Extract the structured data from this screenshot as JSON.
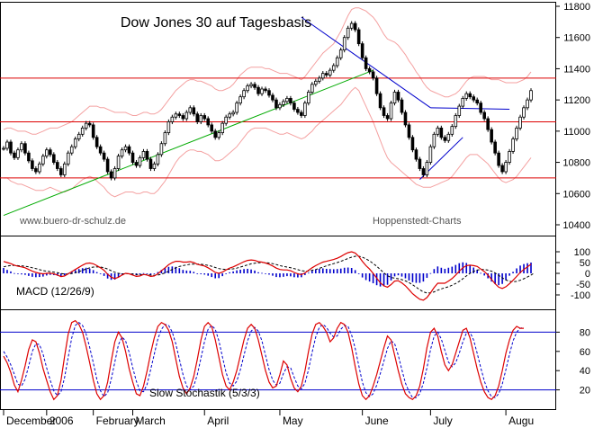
{
  "chart_data": [
    {
      "type": "candlestick",
      "title": "Dow Jones 30 auf Tagesbasis",
      "watermark_left": "www.buero-dr-schulz.de",
      "watermark_right": "Hoppenstedt-Charts",
      "ylim": [
        10400,
        11800
      ],
      "yticks": [
        10400,
        10600,
        10800,
        11000,
        11200,
        11400,
        11600,
        11800
      ],
      "colors": {
        "price": "#000000",
        "bands": "#f4a0a0",
        "hlines": "#dd0000",
        "uptrend": "#00aa00",
        "downtrend": "#0000cc"
      },
      "close": [
        10890,
        10930,
        10860,
        10830,
        10880,
        10920,
        10860,
        10810,
        10760,
        10740,
        10790,
        10840,
        10880,
        10850,
        10800,
        10760,
        10720,
        10790,
        10860,
        10900,
        10950,
        10980,
        11020,
        11050,
        11040,
        10960,
        10900,
        10860,
        10820,
        10740,
        10700,
        10760,
        10840,
        10880,
        10900,
        10860,
        10800,
        10780,
        10830,
        10870,
        10820,
        10760,
        10790,
        10850,
        10920,
        10990,
        11060,
        11090,
        11110,
        11100,
        11080,
        11120,
        11150,
        11110,
        11060,
        11100,
        11080,
        11040,
        11000,
        10960,
        10990,
        11050,
        11090,
        11110,
        11120,
        11180,
        11220,
        11260,
        11290,
        11300,
        11280,
        11240,
        11270,
        11260,
        11230,
        11200,
        11150,
        11170,
        11190,
        11210,
        11180,
        11140,
        11120,
        11100,
        11180,
        11250,
        11300,
        11320,
        11340,
        11370,
        11360,
        11390,
        11420,
        11470,
        11520,
        11600,
        11660,
        11690,
        11650,
        11560,
        11470,
        11400,
        11380,
        11340,
        11240,
        11150,
        11100,
        11080,
        11180,
        11250,
        11200,
        11120,
        11040,
        10960,
        10880,
        10820,
        10760,
        10720,
        10800,
        10900,
        10980,
        11020,
        10960,
        10940,
        10980,
        11030,
        11100,
        11160,
        11210,
        11240,
        11220,
        11200,
        11180,
        11120,
        11080,
        11010,
        10930,
        10860,
        10780,
        10740,
        10800,
        10870,
        10950,
        11020,
        11090,
        11150,
        11200,
        11260
      ],
      "band_upper": [
        11010,
        11020,
        11020,
        11010,
        11000,
        11000,
        11000,
        10990,
        10980,
        10980,
        10990,
        11000,
        11010,
        11020,
        11020,
        11020,
        11030,
        11040,
        11050,
        11060,
        11080,
        11100,
        11120,
        11140,
        11160,
        11160,
        11160,
        11150,
        11150,
        11140,
        11130,
        11120,
        11120,
        11120,
        11120,
        11110,
        11100,
        11100,
        11110,
        11120,
        11120,
        11110,
        11110,
        11120,
        11140,
        11170,
        11200,
        11230,
        11260,
        11280,
        11300,
        11320,
        11330,
        11330,
        11320,
        11320,
        11310,
        11300,
        11290,
        11270,
        11260,
        11260,
        11270,
        11280,
        11300,
        11330,
        11360,
        11380,
        11400,
        11410,
        11410,
        11410,
        11410,
        11400,
        11400,
        11390,
        11380,
        11370,
        11370,
        11370,
        11360,
        11350,
        11340,
        11330,
        11350,
        11380,
        11410,
        11440,
        11470,
        11500,
        11520,
        11540,
        11560,
        11600,
        11640,
        11690,
        11740,
        11780,
        11790,
        11790,
        11780,
        11770,
        11750,
        11730,
        11700,
        11660,
        11620,
        11590,
        11580,
        11570,
        11550,
        11520,
        11490,
        11450,
        11420,
        11380,
        11350,
        11310,
        11280,
        11260,
        11250,
        11240,
        11230,
        11220,
        11220,
        11230,
        11240,
        11260,
        11290,
        11320,
        11340,
        11350,
        11350,
        11350,
        11350,
        11340,
        11330,
        11330,
        11330,
        11320,
        11310,
        11310,
        11310,
        11310,
        11320,
        11330,
        11350,
        11380
      ],
      "band_lower": [
        10700,
        10700,
        10680,
        10670,
        10660,
        10660,
        10650,
        10640,
        10630,
        10620,
        10620,
        10620,
        10630,
        10640,
        10630,
        10620,
        10610,
        10610,
        10620,
        10630,
        10650,
        10670,
        10690,
        10700,
        10710,
        10700,
        10680,
        10660,
        10640,
        10610,
        10590,
        10580,
        10590,
        10600,
        10610,
        10610,
        10610,
        10600,
        10600,
        10610,
        10610,
        10600,
        10600,
        10620,
        10650,
        10680,
        10720,
        10760,
        10800,
        10830,
        10850,
        10870,
        10880,
        10880,
        10870,
        10870,
        10860,
        10850,
        10830,
        10810,
        10810,
        10820,
        10840,
        10860,
        10880,
        10900,
        10930,
        10960,
        10990,
        11010,
        11020,
        11020,
        11020,
        11020,
        11010,
        11000,
        10990,
        10980,
        10980,
        10990,
        10980,
        10970,
        10960,
        10950,
        10960,
        10980,
        11000,
        11030,
        11050,
        11070,
        11090,
        11110,
        11130,
        11150,
        11170,
        11200,
        11230,
        11260,
        11280,
        11260,
        11210,
        11160,
        11110,
        11060,
        11000,
        10940,
        10880,
        10830,
        10800,
        10780,
        10760,
        10740,
        10720,
        10700,
        10680,
        10660,
        10650,
        10640,
        10640,
        10640,
        10650,
        10660,
        10670,
        10680,
        10690,
        10710,
        10740,
        10770,
        10800,
        10830,
        10850,
        10850,
        10850,
        10830,
        10810,
        10790,
        10760,
        10730,
        10700,
        10680,
        10670,
        10680,
        10690,
        10710,
        10740,
        10770,
        10800,
        10830
      ],
      "horizontal_lines": [
        10700,
        11060,
        11340
      ],
      "uptrend_line": {
        "from": [
          0,
          10460
        ],
        "to": [
          103,
          11390
        ]
      },
      "downtrend_line": {
        "from": [
          83,
          11730
        ],
        "to": [
          119,
          11150
        ]
      },
      "downtrend_line2": {
        "from": [
          119,
          11150
        ],
        "to": [
          141,
          11140
        ]
      },
      "rising_line": {
        "from": [
          116,
          10690
        ],
        "to": [
          128,
          10960
        ]
      }
    },
    {
      "type": "line",
      "label": "MACD (12/26/9)",
      "ylim": [
        -150,
        150
      ],
      "yticks": [
        100,
        50,
        0,
        -50,
        -100
      ],
      "colors": {
        "macd": "#dd0000",
        "signal": "#000000",
        "histogram": "#0000cc"
      },
      "macd": [
        55,
        50,
        45,
        38,
        33,
        30,
        26,
        18,
        10,
        4,
        0,
        -2,
        0,
        1,
        -2,
        -8,
        -15,
        -12,
        -2,
        8,
        18,
        28,
        38,
        46,
        48,
        44,
        36,
        26,
        14,
        -4,
        -18,
        -24,
        -18,
        -8,
        0,
        -2,
        -8,
        -14,
        -12,
        -5,
        -8,
        -14,
        -12,
        -2,
        12,
        26,
        40,
        50,
        56,
        56,
        52,
        52,
        54,
        50,
        42,
        38,
        34,
        26,
        16,
        4,
        0,
        6,
        16,
        24,
        30,
        38,
        46,
        54,
        60,
        62,
        60,
        54,
        52,
        48,
        42,
        34,
        24,
        18,
        16,
        16,
        12,
        4,
        -2,
        -6,
        2,
        14,
        26,
        36,
        44,
        52,
        56,
        60,
        64,
        70,
        78,
        88,
        96,
        100,
        94,
        78,
        56,
        36,
        20,
        0,
        -22,
        -44,
        -58,
        -64,
        -52,
        -36,
        -34,
        -44,
        -58,
        -76,
        -94,
        -108,
        -120,
        -124,
        -112,
        -90,
        -66,
        -46,
        -46,
        -46,
        -36,
        -24,
        -8,
        10,
        26,
        36,
        38,
        36,
        32,
        20,
        8,
        -8,
        -28,
        -48,
        -64,
        -70,
        -62,
        -48,
        -32,
        -14,
        4,
        18,
        30,
        42
      ],
      "signal": [
        30,
        34,
        36,
        37,
        36,
        35,
        33,
        30,
        26,
        22,
        17,
        13,
        10,
        8,
        6,
        3,
        -1,
        -3,
        -3,
        -1,
        3,
        8,
        14,
        20,
        26,
        29,
        30,
        29,
        26,
        20,
        12,
        5,
        0,
        -2,
        -2,
        -2,
        -3,
        -5,
        -6,
        -6,
        -6,
        -8,
        -9,
        -8,
        -4,
        2,
        10,
        18,
        26,
        32,
        36,
        39,
        42,
        43,
        43,
        42,
        40,
        37,
        33,
        27,
        22,
        19,
        18,
        19,
        21,
        24,
        29,
        34,
        39,
        44,
        47,
        49,
        50,
        50,
        48,
        45,
        41,
        36,
        32,
        29,
        26,
        22,
        17,
        12,
        10,
        11,
        14,
        18,
        23,
        29,
        35,
        40,
        45,
        50,
        56,
        62,
        69,
        75,
        79,
        79,
        75,
        67,
        58,
        46,
        33,
        17,
        2,
        -11,
        -19,
        -22,
        -25,
        -29,
        -35,
        -43,
        -53,
        -64,
        -76,
        -86,
        -91,
        -91,
        -86,
        -78,
        -72,
        -67,
        -62,
        -55,
        -47,
        -37,
        -25,
        -12,
        0,
        9,
        15,
        18,
        18,
        15,
        10,
        2,
        -9,
        -21,
        -31,
        -37,
        -39,
        -37,
        -32,
        -25,
        -17,
        -8,
        2
      ]
    },
    {
      "type": "line",
      "label": "Slow Stochastik (5/3/3)",
      "ylim": [
        0,
        100
      ],
      "yticks": [
        80,
        60,
        40,
        20
      ],
      "reference_lines": [
        20,
        80
      ],
      "colors": {
        "k": "#dd0000",
        "d": "#0000cc",
        "reference": "#0000cc"
      },
      "k": [
        55,
        48,
        38,
        25,
        18,
        30,
        45,
        62,
        72,
        70,
        58,
        42,
        30,
        18,
        10,
        14,
        30,
        55,
        78,
        90,
        92,
        88,
        80,
        65,
        48,
        30,
        16,
        10,
        14,
        28,
        50,
        70,
        80,
        74,
        60,
        42,
        28,
        16,
        14,
        24,
        40,
        58,
        74,
        86,
        90,
        88,
        82,
        70,
        52,
        34,
        22,
        16,
        22,
        34,
        52,
        72,
        86,
        90,
        86,
        72,
        54,
        36,
        24,
        20,
        28,
        40,
        56,
        72,
        84,
        88,
        84,
        72,
        56,
        40,
        28,
        22,
        24,
        36,
        50,
        46,
        32,
        22,
        18,
        24,
        40,
        60,
        78,
        88,
        90,
        86,
        80,
        70,
        74,
        84,
        90,
        88,
        80,
        64,
        44,
        26,
        14,
        10,
        14,
        24,
        36,
        50,
        64,
        76,
        72,
        56,
        40,
        26,
        16,
        12,
        10,
        14,
        24,
        42,
        64,
        80,
        84,
        76,
        60,
        46,
        40,
        46,
        58,
        70,
        82,
        84,
        74,
        58,
        42,
        28,
        18,
        12,
        10,
        14,
        24,
        40,
        58,
        72,
        82,
        86,
        84,
        84
      ],
      "d": [
        60,
        54,
        46,
        36,
        26,
        24,
        31,
        45,
        60,
        68,
        67,
        57,
        43,
        30,
        19,
        14,
        18,
        33,
        54,
        74,
        87,
        90,
        87,
        78,
        64,
        48,
        31,
        19,
        13,
        17,
        31,
        49,
        67,
        75,
        71,
        59,
        43,
        29,
        19,
        18,
        26,
        41,
        57,
        73,
        83,
        88,
        87,
        80,
        68,
        52,
        36,
        24,
        20,
        24,
        36,
        53,
        70,
        83,
        87,
        83,
        71,
        54,
        38,
        27,
        24,
        29,
        41,
        56,
        71,
        81,
        85,
        81,
        71,
        56,
        41,
        30,
        25,
        27,
        37,
        44,
        43,
        33,
        24,
        21,
        27,
        41,
        59,
        75,
        85,
        88,
        85,
        79,
        75,
        76,
        83,
        87,
        86,
        77,
        63,
        45,
        28,
        17,
        13,
        16,
        25,
        37,
        50,
        63,
        71,
        68,
        56,
        41,
        27,
        18,
        12,
        12,
        16,
        27,
        43,
        62,
        76,
        80,
        73,
        61,
        49,
        44,
        48,
        58,
        70,
        79,
        80,
        72,
        58,
        43,
        29,
        19,
        13,
        12,
        16,
        26,
        41,
        57,
        71,
        80,
        84,
        85
      ]
    },
    {
      "type": "axis",
      "x_tick_labels": [
        "December",
        "2006",
        "February",
        "March",
        "April",
        "May",
        "June",
        "July",
        "Augu"
      ]
    }
  ]
}
